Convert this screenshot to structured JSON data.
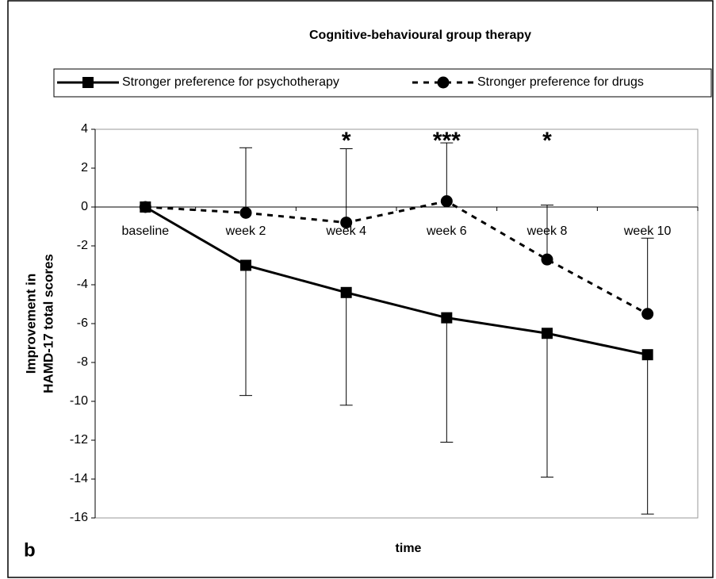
{
  "chart_data": {
    "type": "line",
    "title": "Cognitive-behavioural group therapy",
    "panel_label": "b",
    "x_label": "time",
    "y_label": [
      "Improvement in",
      "HAMD-17 total scores"
    ],
    "categories": [
      "baseline",
      "week 2",
      "week 4",
      "week 6",
      "week 8",
      "week 10"
    ],
    "series": [
      {
        "name": "Stronger preference for psychotherapy",
        "color": "#000000",
        "dash": "solid",
        "marker": "square",
        "values": [
          0,
          -3.0,
          -4.4,
          -5.7,
          -6.5,
          -7.6
        ],
        "errors": [
          0,
          6.7,
          5.8,
          6.4,
          7.4,
          8.2
        ],
        "error_direction": "down"
      },
      {
        "name": "Stronger preference for drugs",
        "color": "#000000",
        "dash": "dashed",
        "marker": "circle",
        "values": [
          0,
          -0.3,
          -0.8,
          0.3,
          -2.7,
          -5.5
        ],
        "errors": [
          0,
          3.35,
          3.8,
          3.0,
          2.8,
          3.9
        ],
        "error_direction": "up"
      }
    ],
    "annotations": [
      {
        "text": "*",
        "category": 2
      },
      {
        "text": "***",
        "category": 3
      },
      {
        "text": "*",
        "category": 4
      }
    ],
    "ylim": [
      -16,
      4
    ],
    "yticks": [
      -16,
      -14,
      -12,
      -10,
      -8,
      -6,
      -4,
      -2,
      0,
      2,
      4
    ],
    "legend": "top",
    "grid": false
  }
}
